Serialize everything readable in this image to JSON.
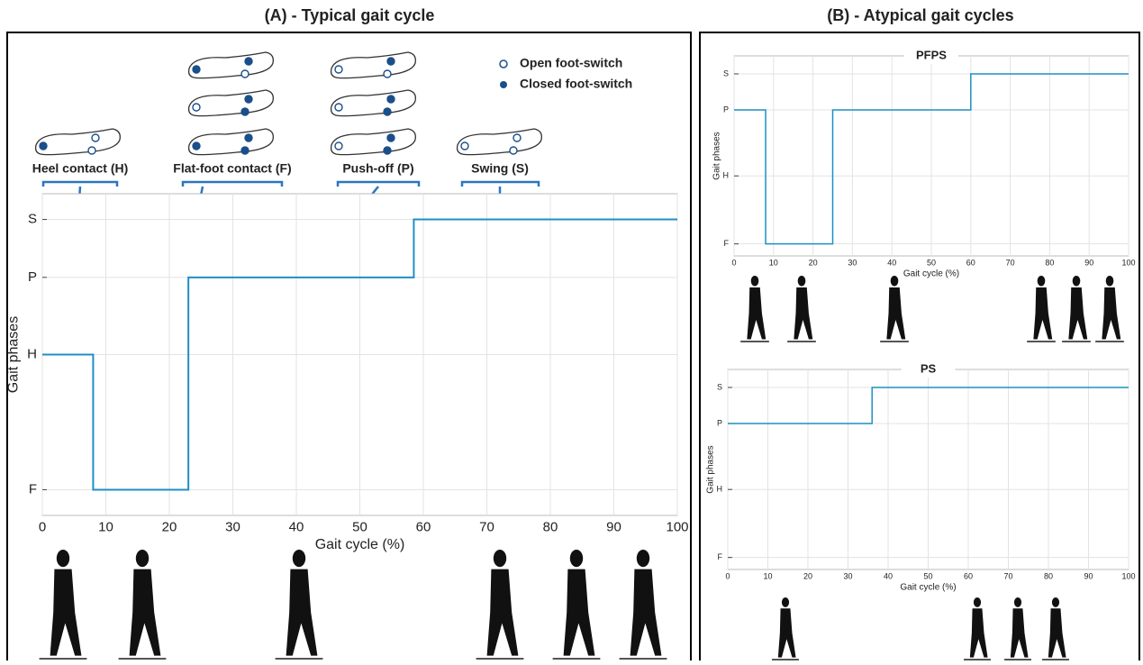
{
  "chart_data": [
    {
      "type": "step",
      "title": "(A) - Typical gait cycle",
      "x_label": "Gait cycle (%)",
      "y_label": "Gait phases",
      "x": [
        0,
        8,
        8,
        23,
        23,
        58.5,
        58.5,
        100
      ],
      "series": [
        {
          "name": "Gait phase",
          "color": "#1f8fc4",
          "values": [
            50,
            50,
            8,
            8,
            74,
            74,
            92,
            92
          ]
        }
      ],
      "xlim": [
        0,
        100
      ],
      "xticks": [
        0,
        10,
        20,
        30,
        40,
        50,
        60,
        70,
        80,
        90,
        100
      ],
      "ylim": [
        0,
        100
      ],
      "yticks": [
        {
          "value": 8,
          "label": "F"
        },
        {
          "value": 50,
          "label": "H"
        },
        {
          "value": 74,
          "label": "P"
        },
        {
          "value": 92,
          "label": "S"
        }
      ],
      "grid": true,
      "annotations": [
        "Heel contact (H)",
        "Flat-foot contact (F)",
        "Push-off (P)",
        "Swing (S)"
      ],
      "foot_switch_legend": [
        "Open foot-switch",
        "Closed foot-switch"
      ]
    },
    {
      "type": "step",
      "title": "PFPS",
      "x_label": "Gait cycle (%)",
      "y_label": "Gait phases",
      "x": [
        0,
        8,
        8,
        25,
        25,
        60,
        60,
        100
      ],
      "series": [
        {
          "name": "Gait phase",
          "color": "#1f8fc4",
          "values": [
            73,
            73,
            6,
            6,
            73,
            73,
            91,
            91
          ]
        }
      ],
      "xlim": [
        0,
        100
      ],
      "xticks": [
        0,
        10,
        20,
        30,
        40,
        50,
        60,
        70,
        80,
        90,
        100
      ],
      "ylim": [
        0,
        100
      ],
      "yticks": [
        {
          "value": 6,
          "label": "F"
        },
        {
          "value": 40,
          "label": "H"
        },
        {
          "value": 73,
          "label": "P"
        },
        {
          "value": 91,
          "label": "S"
        }
      ],
      "grid": true
    },
    {
      "type": "step",
      "title": "PS",
      "x_label": "Gait cycle (%)",
      "y_label": "Gait phases",
      "x": [
        0,
        36,
        36,
        100
      ],
      "series": [
        {
          "name": "Gait phase",
          "color": "#1f8fc4",
          "values": [
            73,
            73,
            91,
            91
          ]
        }
      ],
      "xlim": [
        0,
        100
      ],
      "xticks": [
        0,
        10,
        20,
        30,
        40,
        50,
        60,
        70,
        80,
        90,
        100
      ],
      "ylim": [
        0,
        100
      ],
      "yticks": [
        {
          "value": 6,
          "label": "F"
        },
        {
          "value": 40,
          "label": "H"
        },
        {
          "value": 73,
          "label": "P"
        },
        {
          "value": 91,
          "label": "S"
        }
      ],
      "grid": true
    }
  ],
  "panel_b_title": "(B) - Atypical gait cycles"
}
